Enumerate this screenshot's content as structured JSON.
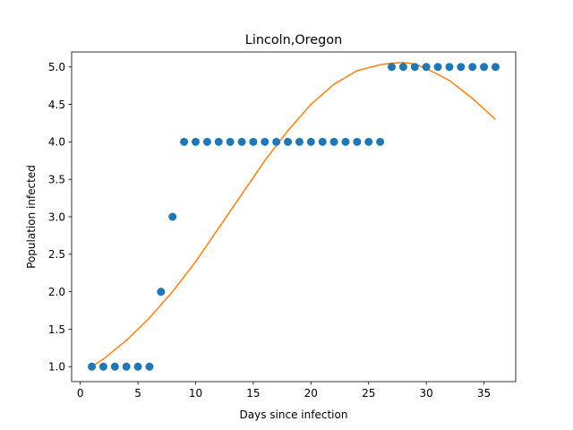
{
  "chart_data": {
    "type": "scatter",
    "title": "Lincoln,Oregon",
    "xlabel": "Days since infection",
    "ylabel": "Population infected",
    "xlim": [
      -0.75,
      37.75
    ],
    "ylim": [
      0.8,
      5.2
    ],
    "xticks": [
      0,
      5,
      10,
      15,
      20,
      25,
      30,
      35
    ],
    "xtick_labels": [
      "0",
      "5",
      "10",
      "15",
      "20",
      "25",
      "30",
      "35"
    ],
    "yticks": [
      1.0,
      1.5,
      2.0,
      2.5,
      3.0,
      3.5,
      4.0,
      4.5,
      5.0
    ],
    "ytick_labels": [
      "1.0",
      "1.5",
      "2.0",
      "2.5",
      "3.0",
      "3.5",
      "4.0",
      "4.5",
      "5.0"
    ],
    "grid": false,
    "series": [
      {
        "kind": "scatter",
        "color": "#1f77b4",
        "x": [
          1,
          2,
          3,
          4,
          5,
          6,
          7,
          8,
          9,
          10,
          11,
          12,
          13,
          14,
          15,
          16,
          17,
          18,
          19,
          20,
          21,
          22,
          23,
          24,
          25,
          26,
          27,
          28,
          29,
          30,
          31,
          32,
          33,
          34,
          35,
          36
        ],
        "y": [
          1,
          1,
          1,
          1,
          1,
          1,
          2,
          3,
          4,
          4,
          4,
          4,
          4,
          4,
          4,
          4,
          4,
          4,
          4,
          4,
          4,
          4,
          4,
          4,
          4,
          4,
          5,
          5,
          5,
          5,
          5,
          5,
          5,
          5,
          5,
          5
        ]
      },
      {
        "kind": "line",
        "color": "#ff7f0e",
        "x": [
          1,
          2,
          4,
          6,
          8,
          10,
          12,
          14,
          16,
          18,
          20,
          22,
          24,
          26,
          27,
          28,
          29,
          30,
          32,
          34,
          36
        ],
        "y": [
          1.0,
          1.1,
          1.35,
          1.65,
          2.0,
          2.4,
          2.85,
          3.3,
          3.75,
          4.15,
          4.5,
          4.77,
          4.95,
          5.03,
          5.05,
          5.06,
          5.04,
          4.98,
          4.82,
          4.58,
          4.3
        ]
      }
    ]
  }
}
